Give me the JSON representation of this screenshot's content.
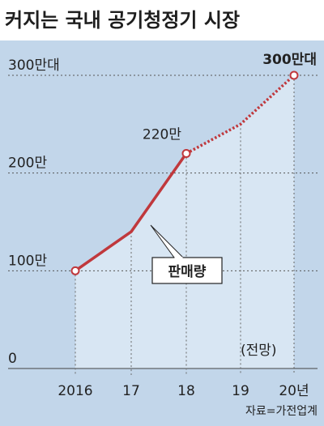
{
  "title": "커지는 국내 공기청정기 시장",
  "source": "자료=가전업계",
  "forecast_note": "(전망)",
  "colors": {
    "background": "#c2d6ea",
    "area": "#d8e6f3",
    "line": "#c0383c",
    "grid": "#555555",
    "text": "#222222"
  },
  "chart_data": {
    "type": "line",
    "categories": [
      "2016",
      "17",
      "18",
      "19",
      "20년"
    ],
    "y_tick_labels": [
      "0",
      "100만",
      "200만",
      "300만대"
    ],
    "ylim": [
      0,
      3000000
    ],
    "grid": "dotted horizontal",
    "series": [
      {
        "name": "판매량",
        "values": [
          1000000,
          1400000,
          2200000,
          2500000,
          3000000
        ],
        "forecast_from_index": 2
      }
    ],
    "annotations": [
      {
        "index": 2,
        "text": "220만",
        "bold": false
      },
      {
        "index": 4,
        "text": "300만대",
        "bold": true
      }
    ]
  }
}
